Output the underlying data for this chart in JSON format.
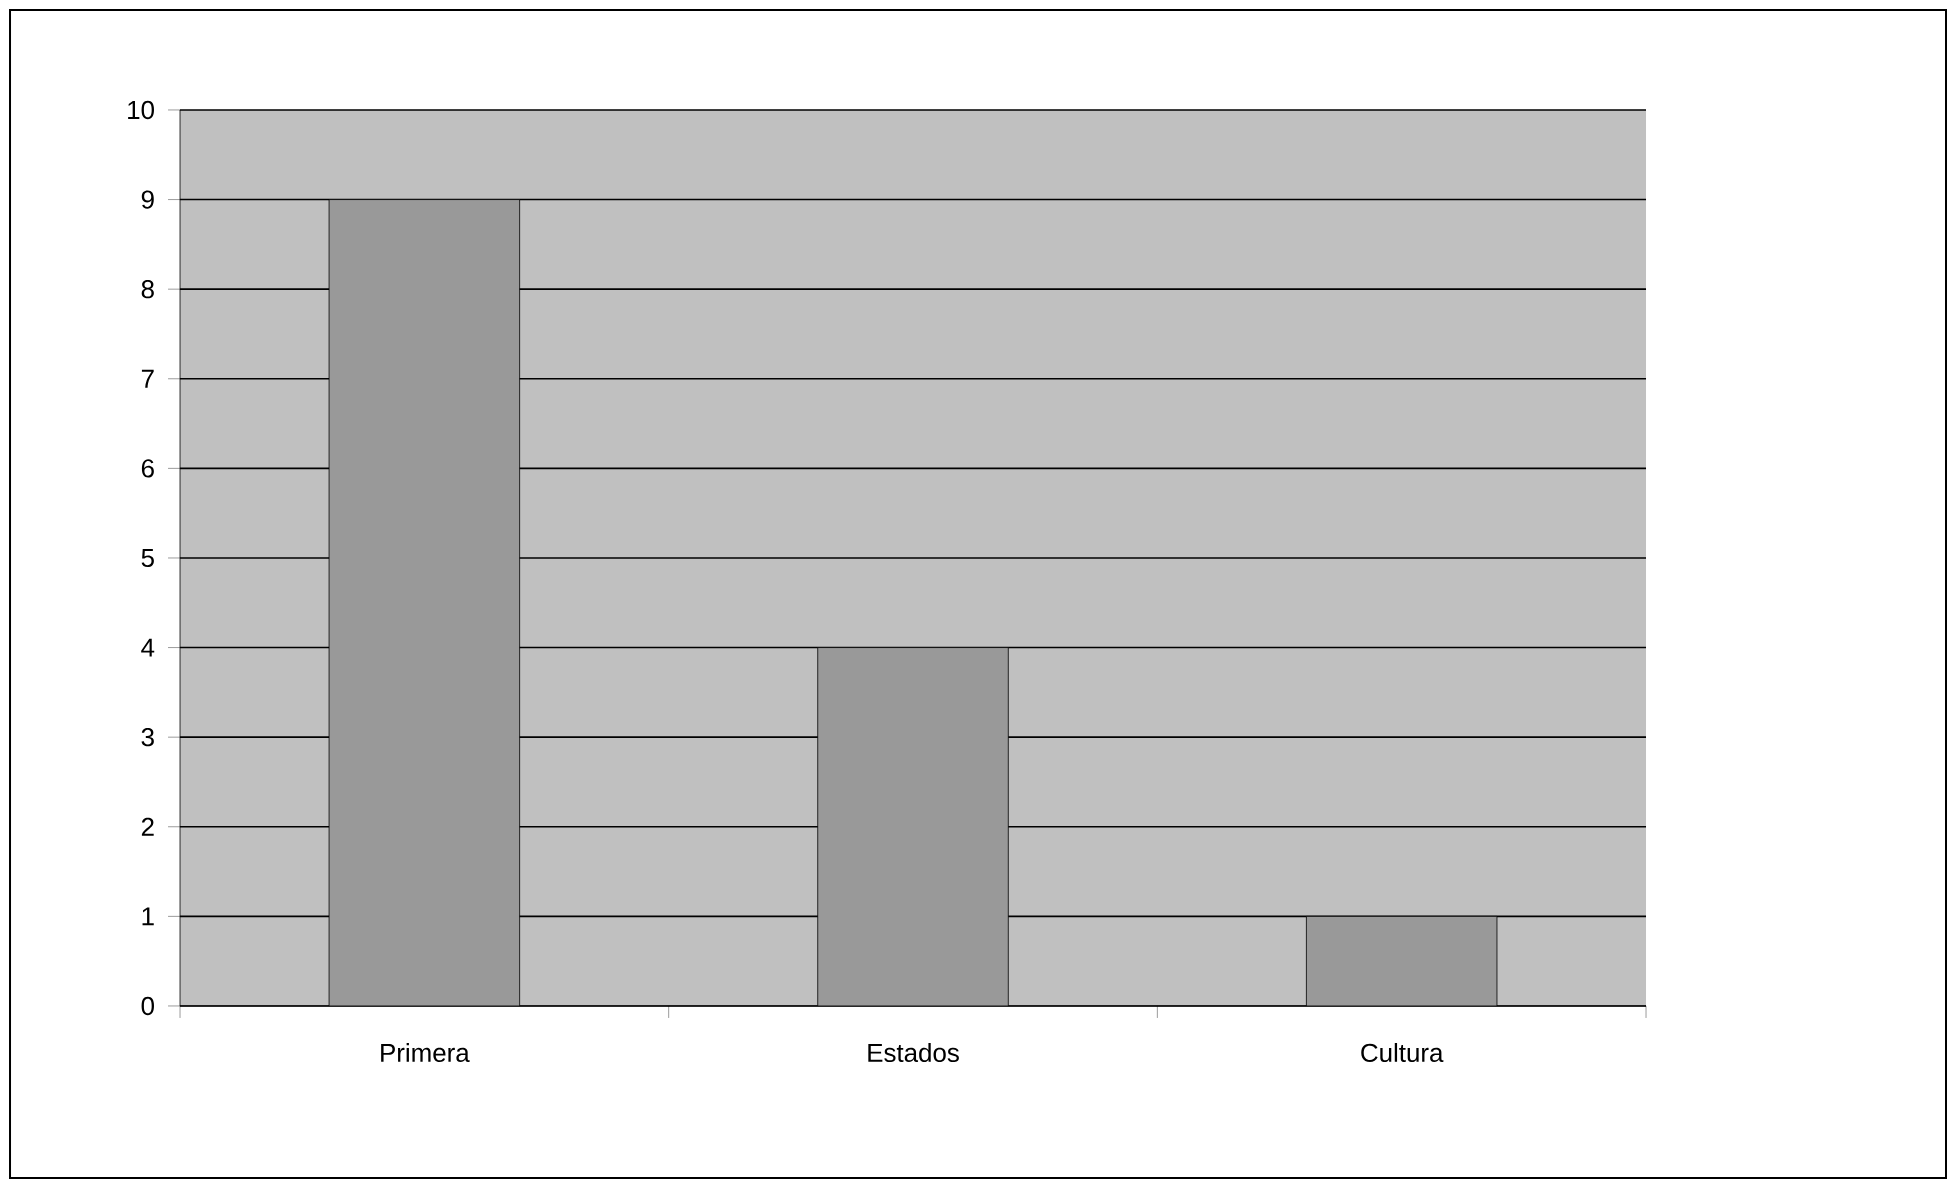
{
  "chart_data": {
    "type": "bar",
    "categories": [
      "Primera",
      "Estados",
      "Cultura"
    ],
    "values": [
      9,
      4,
      1
    ],
    "color": "#999999",
    "ylim": [
      0,
      10
    ],
    "yticks": [
      0,
      1,
      2,
      3,
      4,
      5,
      6,
      7,
      8,
      9,
      10
    ],
    "grid": "y"
  }
}
